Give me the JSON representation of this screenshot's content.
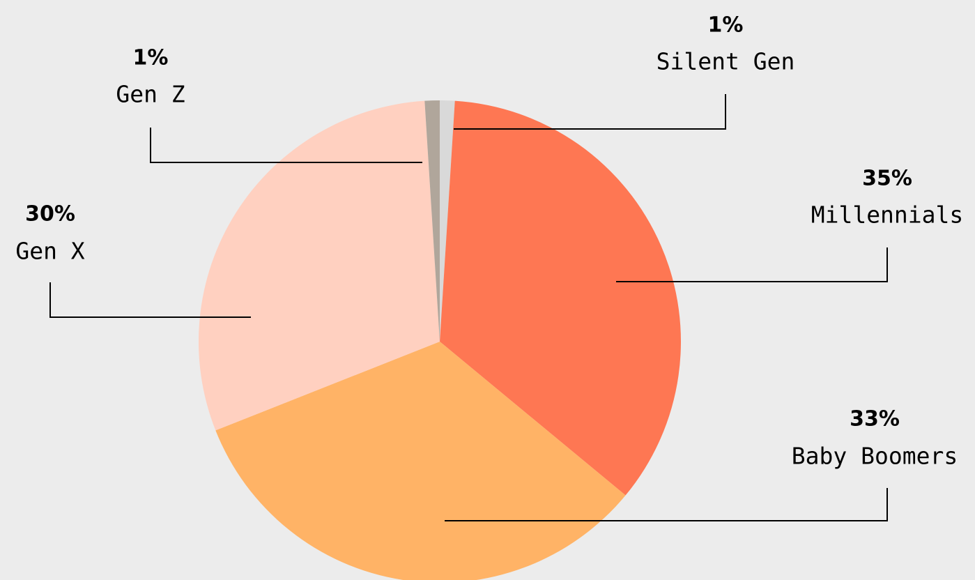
{
  "chart_data": {
    "type": "pie",
    "categories": [
      "Silent Gen",
      "Millennials",
      "Baby Boomers",
      "Gen X",
      "Gen Z"
    ],
    "values": [
      1,
      35,
      33,
      30,
      1
    ],
    "value_labels": [
      "1%",
      "35%",
      "33%",
      "30%",
      "1%"
    ],
    "colors": [
      "#d9d9d9",
      "#fe7753",
      "#ffb366",
      "#ffd0c0",
      "#b0a69b"
    ]
  }
}
